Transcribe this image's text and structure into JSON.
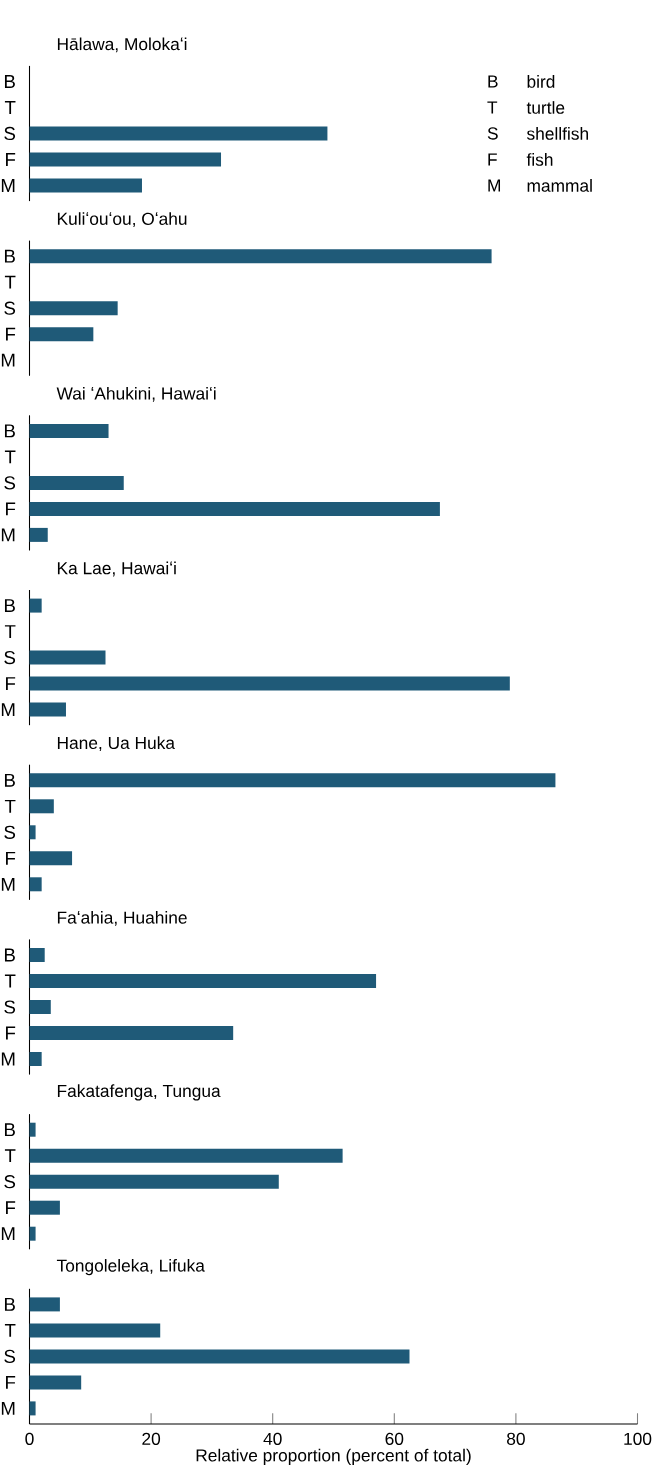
{
  "chart_data": [
    {
      "type": "bar",
      "orientation": "horizontal",
      "title": "Hālawa, Molokaʻi",
      "categories": [
        "B",
        "T",
        "S",
        "F",
        "M"
      ],
      "values": [
        0,
        0,
        49,
        31.5,
        18.5
      ],
      "color": "#1f5a78",
      "xlim": [
        0,
        100
      ],
      "xticks": [
        0,
        20,
        40,
        60,
        80,
        100
      ],
      "tick_labels": "y",
      "annotations": [
        "B",
        "bird",
        "T",
        "turtle",
        "S",
        "shellfish",
        "F",
        "fish",
        "M",
        "mammal"
      ]
    },
    {
      "type": "bar",
      "orientation": "horizontal",
      "title": "Kuliʻouʻou, Oʻahu",
      "categories": [
        "B",
        "T",
        "S",
        "F",
        "M"
      ],
      "values": [
        76,
        0,
        14.5,
        10.5,
        0
      ],
      "color": "#1f5a78",
      "xlim": [
        0,
        100
      ],
      "xticks": [
        0,
        20,
        40,
        60,
        80,
        100
      ],
      "tick_labels": "y"
    },
    {
      "type": "bar",
      "orientation": "horizontal",
      "title": "Wai ʻAhukini, Hawaiʻi",
      "categories": [
        "B",
        "T",
        "S",
        "F",
        "M"
      ],
      "values": [
        13,
        0,
        15.5,
        67.5,
        3
      ],
      "color": "#1f5a78",
      "xlim": [
        0,
        100
      ],
      "xticks": [
        0,
        20,
        40,
        60,
        80,
        100
      ],
      "tick_labels": "y"
    },
    {
      "type": "bar",
      "orientation": "horizontal",
      "title": "Ka Lae, Hawaiʻi",
      "categories": [
        "B",
        "T",
        "S",
        "F",
        "M"
      ],
      "values": [
        2,
        0,
        12.5,
        79,
        6
      ],
      "color": "#1f5a78",
      "xlim": [
        0,
        100
      ],
      "xticks": [
        0,
        20,
        40,
        60,
        80,
        100
      ],
      "tick_labels": "y"
    },
    {
      "type": "bar",
      "orientation": "horizontal",
      "title": "Hane, Ua Huka",
      "categories": [
        "B",
        "T",
        "S",
        "F",
        "M"
      ],
      "values": [
        86.5,
        4,
        1,
        7,
        2
      ],
      "color": "#1f5a78",
      "xlim": [
        0,
        100
      ],
      "xticks": [
        0,
        20,
        40,
        60,
        80,
        100
      ],
      "tick_labels": "y"
    },
    {
      "type": "bar",
      "orientation": "horizontal",
      "title": "Faʻahia, Huahine",
      "categories": [
        "B",
        "T",
        "S",
        "F",
        "M"
      ],
      "values": [
        2.5,
        57,
        3.5,
        33.5,
        2
      ],
      "color": "#1f5a78",
      "xlim": [
        0,
        100
      ],
      "xticks": [
        0,
        20,
        40,
        60,
        80,
        100
      ],
      "tick_labels": "y"
    },
    {
      "type": "bar",
      "orientation": "horizontal",
      "title": "Fakatafenga, Tungua",
      "categories": [
        "B",
        "T",
        "S",
        "F",
        "M"
      ],
      "values": [
        1,
        51.5,
        41,
        5,
        1
      ],
      "color": "#1f5a78",
      "xlim": [
        0,
        100
      ],
      "xticks": [
        0,
        20,
        40,
        60,
        80,
        100
      ],
      "tick_labels": "y"
    },
    {
      "type": "bar",
      "orientation": "horizontal",
      "title": "Tongoleleka, Lifuka",
      "categories": [
        "B",
        "T",
        "S",
        "F",
        "M"
      ],
      "values": [
        5,
        21.5,
        62.5,
        8.5,
        1
      ],
      "color": "#1f5a78",
      "xlim": [
        0,
        100
      ],
      "xticks": [
        0,
        20,
        40,
        60,
        80,
        100
      ],
      "xlabel": "Relative proportion (percent of total)"
    }
  ]
}
